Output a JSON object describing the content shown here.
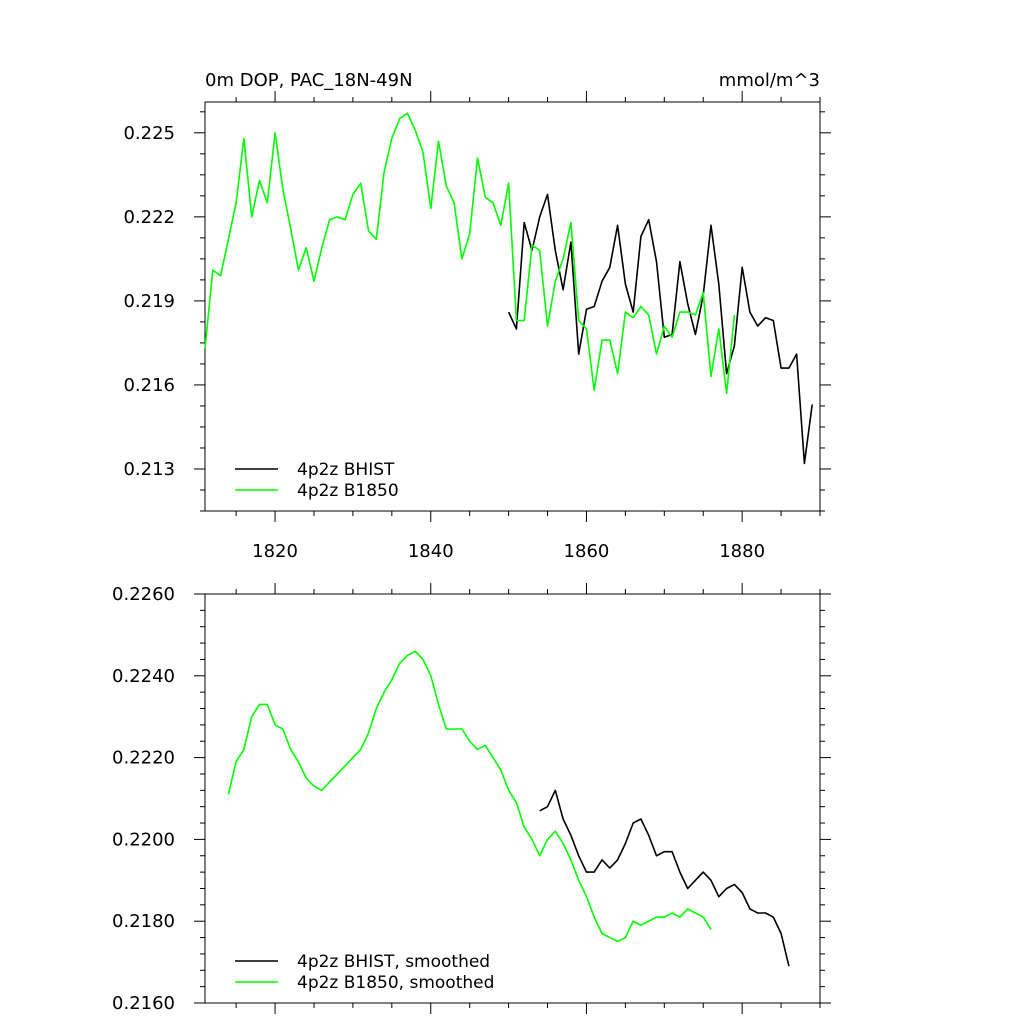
{
  "chart_data": [
    {
      "type": "line",
      "title": "0m DOP, PAC_18N-49N",
      "units": "mmol/m^3",
      "xlim": [
        1811,
        1890
      ],
      "ylim": [
        0.2115,
        0.2261
      ],
      "xticks": [
        1820,
        1840,
        1860,
        1880
      ],
      "xtick_labels": [
        "1820",
        "1840",
        "1860",
        "1880"
      ],
      "yticks": [
        0.213,
        0.216,
        0.219,
        0.222,
        0.225
      ],
      "ytick_labels": [
        "0.213",
        "0.216",
        "0.219",
        "0.222",
        "0.225"
      ],
      "legend_position": "bottom-left",
      "series": [
        {
          "name": "4p2z BHIST",
          "color": "#000000",
          "x": [
            1850,
            1851,
            1852,
            1853,
            1854,
            1855,
            1856,
            1857,
            1858,
            1859,
            1860,
            1861,
            1862,
            1863,
            1864,
            1865,
            1866,
            1867,
            1868,
            1869,
            1870,
            1871,
            1872,
            1873,
            1874,
            1875,
            1876,
            1877,
            1878,
            1879,
            1880,
            1881,
            1882,
            1883,
            1884,
            1885,
            1886,
            1887,
            1888,
            1889
          ],
          "values": [
            0.2186,
            0.218,
            0.2218,
            0.2208,
            0.222,
            0.2228,
            0.2208,
            0.2194,
            0.2211,
            0.2171,
            0.2187,
            0.2188,
            0.2197,
            0.2202,
            0.2217,
            0.2196,
            0.2186,
            0.2213,
            0.2219,
            0.2204,
            0.2177,
            0.2178,
            0.2204,
            0.2189,
            0.2178,
            0.2192,
            0.2217,
            0.2196,
            0.2164,
            0.2174,
            0.2202,
            0.2186,
            0.2181,
            0.2184,
            0.2183,
            0.2166,
            0.2166,
            0.2171,
            0.2132,
            0.2153
          ]
        },
        {
          "name": "4p2z B1850",
          "color": "#00ff00",
          "x": [
            1811,
            1812,
            1813,
            1814,
            1815,
            1816,
            1817,
            1818,
            1819,
            1820,
            1821,
            1822,
            1823,
            1824,
            1825,
            1826,
            1827,
            1828,
            1829,
            1830,
            1831,
            1832,
            1833,
            1834,
            1835,
            1836,
            1837,
            1838,
            1839,
            1840,
            1841,
            1842,
            1843,
            1844,
            1845,
            1846,
            1847,
            1848,
            1849,
            1850,
            1851,
            1852,
            1853,
            1854,
            1855,
            1856,
            1857,
            1858,
            1859,
            1860,
            1861,
            1862,
            1863,
            1864,
            1865,
            1866,
            1867,
            1868,
            1869,
            1870,
            1871,
            1872,
            1873,
            1874,
            1875,
            1876,
            1877,
            1878,
            1879
          ],
          "values": [
            0.2173,
            0.2201,
            0.2199,
            0.2212,
            0.2225,
            0.2248,
            0.222,
            0.2233,
            0.2225,
            0.225,
            0.223,
            0.2216,
            0.2201,
            0.2209,
            0.2197,
            0.2209,
            0.2219,
            0.222,
            0.2219,
            0.2228,
            0.2232,
            0.2215,
            0.2212,
            0.2236,
            0.2248,
            0.2255,
            0.2257,
            0.2251,
            0.2243,
            0.2223,
            0.2247,
            0.2231,
            0.2225,
            0.2205,
            0.2214,
            0.2241,
            0.2227,
            0.2225,
            0.2217,
            0.2232,
            0.2183,
            0.2183,
            0.221,
            0.2208,
            0.2181,
            0.2197,
            0.2205,
            0.2218,
            0.2183,
            0.218,
            0.2158,
            0.2176,
            0.2176,
            0.2164,
            0.2186,
            0.2184,
            0.2188,
            0.2185,
            0.2171,
            0.2181,
            0.2177,
            0.2186,
            0.2186,
            0.2185,
            0.2193,
            0.2163,
            0.218,
            0.2157,
            0.2185
          ]
        }
      ]
    },
    {
      "type": "line",
      "xlim": [
        1811,
        1890
      ],
      "ylim": [
        0.216,
        0.226
      ],
      "xticks": [
        1820,
        1840,
        1860,
        1880
      ],
      "xtick_labels": [],
      "yticks": [
        0.216,
        0.218,
        0.22,
        0.222,
        0.224,
        0.226
      ],
      "ytick_labels": [
        "0.2160",
        "0.2180",
        "0.2200",
        "0.2220",
        "0.2240",
        "0.2260"
      ],
      "legend_position": "bottom-left",
      "series": [
        {
          "name": "4p2z BHIST, smoothed",
          "color": "#000000",
          "x": [
            1854,
            1855,
            1856,
            1857,
            1858,
            1859,
            1860,
            1861,
            1862,
            1863,
            1864,
            1865,
            1866,
            1867,
            1868,
            1869,
            1870,
            1871,
            1872,
            1873,
            1874,
            1875,
            1876,
            1877,
            1878,
            1879,
            1880,
            1881,
            1882,
            1883,
            1884,
            1885,
            1886
          ],
          "values": [
            0.2207,
            0.2208,
            0.2212,
            0.2205,
            0.2201,
            0.2196,
            0.2192,
            0.2192,
            0.2195,
            0.2193,
            0.2195,
            0.2199,
            0.2204,
            0.2205,
            0.2201,
            0.2196,
            0.2197,
            0.2197,
            0.2192,
            0.2188,
            0.219,
            0.2192,
            0.219,
            0.2186,
            0.2188,
            0.2189,
            0.2187,
            0.2183,
            0.2182,
            0.2182,
            0.2181,
            0.2177,
            0.2169
          ]
        },
        {
          "name": "4p2z B1850, smoothed",
          "color": "#00ff00",
          "x": [
            1814,
            1815,
            1816,
            1817,
            1818,
            1819,
            1820,
            1821,
            1822,
            1823,
            1824,
            1825,
            1826,
            1827,
            1828,
            1829,
            1830,
            1831,
            1832,
            1833,
            1834,
            1835,
            1836,
            1837,
            1838,
            1839,
            1840,
            1841,
            1842,
            1843,
            1844,
            1845,
            1846,
            1847,
            1848,
            1849,
            1850,
            1851,
            1852,
            1853,
            1854,
            1855,
            1856,
            1857,
            1858,
            1859,
            1860,
            1861,
            1862,
            1863,
            1864,
            1865,
            1866,
            1867,
            1868,
            1869,
            1870,
            1871,
            1872,
            1873,
            1874,
            1875,
            1876
          ],
          "values": [
            0.2211,
            0.2219,
            0.2222,
            0.223,
            0.2233,
            0.2233,
            0.2228,
            0.2227,
            0.2222,
            0.2219,
            0.2215,
            0.2213,
            0.2212,
            0.2214,
            0.2216,
            0.2218,
            0.222,
            0.2222,
            0.2226,
            0.2232,
            0.2236,
            0.2239,
            0.2243,
            0.2245,
            0.2246,
            0.2244,
            0.224,
            0.2233,
            0.2227,
            0.2227,
            0.2227,
            0.2224,
            0.2222,
            0.2223,
            0.222,
            0.2217,
            0.2212,
            0.2209,
            0.2203,
            0.22,
            0.2196,
            0.22,
            0.2202,
            0.2199,
            0.2195,
            0.219,
            0.2186,
            0.2181,
            0.2177,
            0.2176,
            0.2175,
            0.2176,
            0.218,
            0.2179,
            0.218,
            0.2181,
            0.2181,
            0.2182,
            0.2181,
            0.2183,
            0.2182,
            0.2181,
            0.2178
          ]
        }
      ]
    }
  ]
}
